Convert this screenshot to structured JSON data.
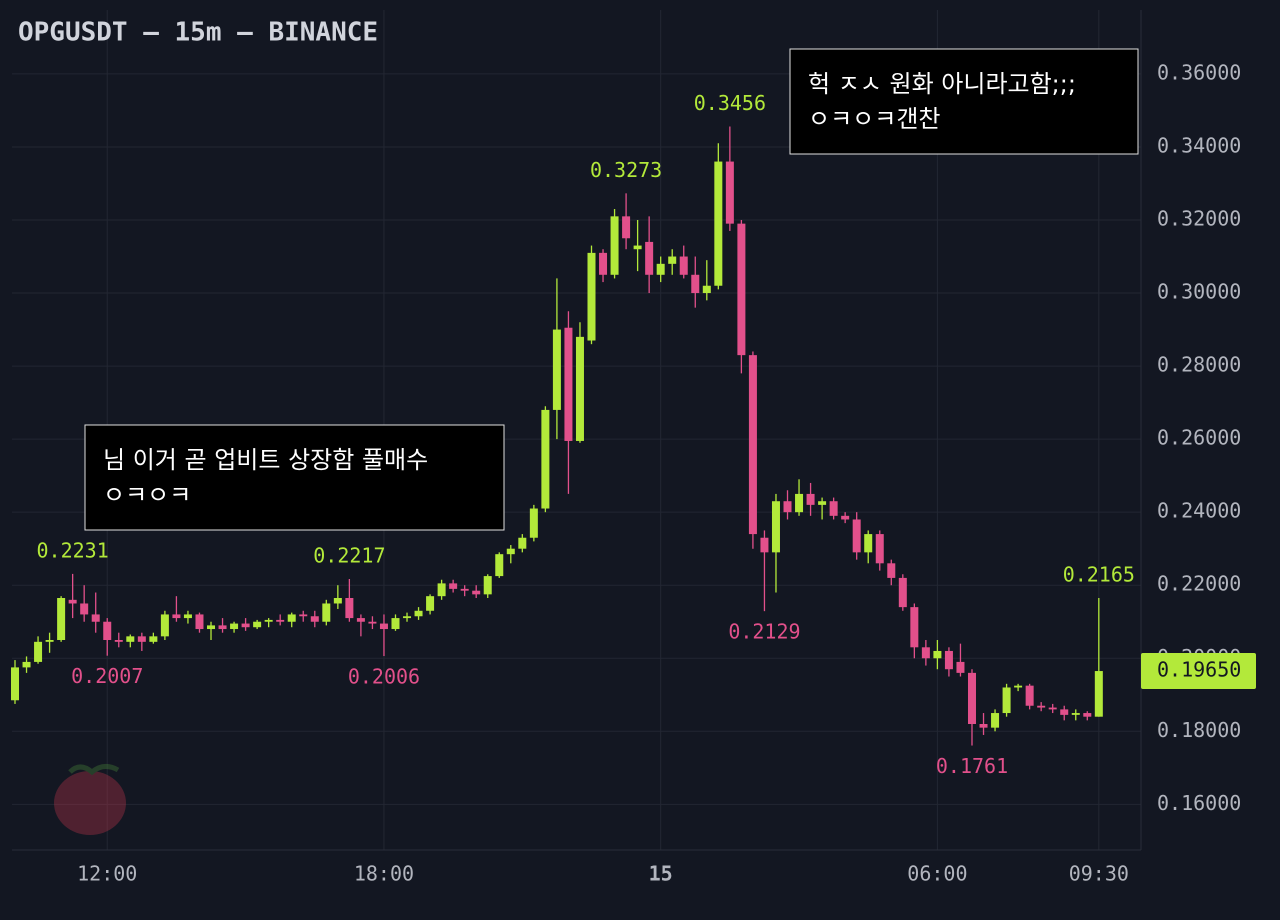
{
  "chart_data": {
    "type": "candlestick",
    "title": "OPGUSDT — 15m — BINANCE",
    "categories": [
      null,
      null,
      null,
      null,
      null,
      null,
      null,
      null,
      "12:00",
      null,
      null,
      null,
      null,
      null,
      null,
      null,
      null,
      null,
      null,
      null,
      null,
      null,
      null,
      null,
      null,
      null,
      null,
      null,
      null,
      null,
      null,
      null,
      "18:00",
      null,
      null,
      null,
      null,
      null,
      null,
      null,
      null,
      null,
      null,
      null,
      null,
      null,
      null,
      null,
      null,
      null,
      null,
      null,
      null,
      null,
      null,
      null,
      "15",
      null,
      null,
      null,
      null,
      null,
      null,
      null,
      null,
      null,
      null,
      null,
      null,
      null,
      null,
      null,
      null,
      null,
      null,
      null,
      null,
      null,
      null,
      null,
      "06:00",
      null,
      null,
      null,
      null,
      null,
      null,
      null,
      null,
      null,
      null,
      null,
      null,
      null,
      "09:30"
    ],
    "open": [
      0.1885,
      0.1975,
      0.199,
      0.2045,
      0.205,
      0.216,
      0.215,
      0.212,
      0.21,
      0.205,
      0.2045,
      0.206,
      0.2045,
      0.206,
      0.212,
      0.211,
      0.212,
      0.208,
      0.209,
      0.208,
      0.2095,
      0.2085,
      0.21,
      0.2105,
      0.21,
      0.212,
      0.2115,
      0.21,
      0.215,
      0.2165,
      0.211,
      0.21,
      0.2095,
      0.208,
      0.211,
      0.2115,
      0.213,
      0.217,
      0.2205,
      0.219,
      0.2185,
      0.2175,
      0.2225,
      0.2285,
      0.23,
      0.233,
      0.241,
      0.268,
      0.2905,
      0.2595,
      0.287,
      0.311,
      0.305,
      0.321,
      0.312,
      0.314,
      0.305,
      0.308,
      0.31,
      0.305,
      0.3,
      0.302,
      0.336,
      0.319,
      0.283,
      0.233,
      0.229,
      0.243,
      0.24,
      0.245,
      0.242,
      0.243,
      0.239,
      0.238,
      0.229,
      0.234,
      0.226,
      0.222,
      0.214,
      0.203,
      0.2,
      0.202,
      0.199,
      0.196,
      0.182,
      0.181,
      0.185,
      0.192,
      0.1925,
      0.187,
      0.1865,
      0.186,
      0.1845,
      0.185,
      0.184
    ],
    "high": [
      0.1995,
      0.2005,
      0.206,
      0.207,
      0.217,
      0.2231,
      0.22,
      0.218,
      0.211,
      0.207,
      0.2065,
      0.207,
      0.207,
      0.213,
      0.217,
      0.213,
      0.2125,
      0.21,
      0.211,
      0.21,
      0.211,
      0.2105,
      0.211,
      0.212,
      0.2125,
      0.213,
      0.213,
      0.216,
      0.22,
      0.2217,
      0.212,
      0.2115,
      0.212,
      0.212,
      0.2125,
      0.214,
      0.2175,
      0.2215,
      0.2215,
      0.22,
      0.22,
      0.223,
      0.229,
      0.231,
      0.234,
      0.242,
      0.269,
      0.304,
      0.295,
      0.292,
      0.313,
      0.312,
      0.323,
      0.3273,
      0.32,
      0.321,
      0.31,
      0.312,
      0.313,
      0.31,
      0.309,
      0.341,
      0.3456,
      0.32,
      0.284,
      0.235,
      0.245,
      0.246,
      0.249,
      0.248,
      0.244,
      0.244,
      0.24,
      0.24,
      0.235,
      0.235,
      0.227,
      0.223,
      0.215,
      0.205,
      0.205,
      0.203,
      0.204,
      0.197,
      0.185,
      0.186,
      0.193,
      0.193,
      0.193,
      0.188,
      0.1875,
      0.187,
      0.186,
      0.1855,
      0.2165
    ],
    "low": [
      0.1875,
      0.196,
      0.1985,
      0.2015,
      0.2045,
      0.211,
      0.21,
      0.207,
      0.2007,
      0.203,
      0.203,
      0.202,
      0.204,
      0.205,
      0.21,
      0.2095,
      0.207,
      0.205,
      0.207,
      0.207,
      0.2075,
      0.208,
      0.2085,
      0.209,
      0.2085,
      0.21,
      0.2085,
      0.209,
      0.2135,
      0.21,
      0.206,
      0.208,
      0.2006,
      0.2075,
      0.21,
      0.2105,
      0.212,
      0.216,
      0.218,
      0.217,
      0.2165,
      0.2165,
      0.222,
      0.226,
      0.229,
      0.232,
      0.24,
      0.26,
      0.245,
      0.259,
      0.286,
      0.303,
      0.304,
      0.312,
      0.306,
      0.3,
      0.303,
      0.305,
      0.304,
      0.296,
      0.298,
      0.301,
      0.317,
      0.278,
      0.23,
      0.2129,
      0.218,
      0.238,
      0.239,
      0.239,
      0.238,
      0.238,
      0.237,
      0.227,
      0.226,
      0.224,
      0.22,
      0.213,
      0.2,
      0.198,
      0.197,
      0.195,
      0.195,
      0.1761,
      0.179,
      0.18,
      0.184,
      0.191,
      0.186,
      0.1855,
      0.185,
      0.183,
      0.183,
      0.183,
      0.184
    ],
    "close": [
      0.1975,
      0.199,
      0.2045,
      0.205,
      0.2165,
      0.215,
      0.212,
      0.21,
      0.205,
      0.2045,
      0.206,
      0.2045,
      0.206,
      0.212,
      0.211,
      0.212,
      0.208,
      0.209,
      0.208,
      0.2095,
      0.2085,
      0.21,
      0.2105,
      0.21,
      0.212,
      0.2115,
      0.21,
      0.215,
      0.2165,
      0.211,
      0.21,
      0.2095,
      0.208,
      0.211,
      0.2115,
      0.213,
      0.217,
      0.2205,
      0.219,
      0.2185,
      0.2175,
      0.2225,
      0.2285,
      0.23,
      0.233,
      0.241,
      0.268,
      0.29,
      0.2595,
      0.288,
      0.311,
      0.305,
      0.321,
      0.315,
      0.313,
      0.305,
      0.308,
      0.31,
      0.305,
      0.3,
      0.302,
      0.336,
      0.319,
      0.283,
      0.234,
      0.229,
      0.243,
      0.24,
      0.245,
      0.242,
      0.243,
      0.239,
      0.238,
      0.229,
      0.234,
      0.226,
      0.222,
      0.214,
      0.203,
      0.2,
      0.202,
      0.197,
      0.196,
      0.182,
      0.181,
      0.185,
      0.192,
      0.1925,
      0.187,
      0.1865,
      0.186,
      0.1845,
      0.185,
      0.184,
      0.1965
    ],
    "high_labels": [
      null,
      null,
      null,
      null,
      null,
      "0.2231",
      null,
      null,
      null,
      null,
      null,
      null,
      null,
      null,
      null,
      null,
      null,
      null,
      null,
      null,
      null,
      null,
      null,
      null,
      null,
      null,
      null,
      null,
      null,
      "0.2217",
      null,
      null,
      null,
      null,
      null,
      null,
      null,
      null,
      null,
      null,
      null,
      null,
      null,
      null,
      null,
      null,
      null,
      null,
      null,
      null,
      null,
      null,
      null,
      "0.3273",
      null,
      null,
      null,
      null,
      null,
      null,
      null,
      null,
      "0.3456",
      null,
      null,
      null,
      null,
      null,
      null,
      null,
      null,
      null,
      null,
      null,
      null,
      null,
      null,
      null,
      null,
      null,
      null,
      null,
      null,
      null,
      null,
      null,
      null,
      null,
      null,
      null,
      null,
      null,
      null,
      null,
      "0.2165"
    ],
    "low_labels": [
      null,
      null,
      null,
      null,
      null,
      null,
      null,
      null,
      "0.2007",
      null,
      null,
      null,
      null,
      null,
      null,
      null,
      null,
      null,
      null,
      null,
      null,
      null,
      null,
      null,
      null,
      null,
      null,
      null,
      null,
      null,
      null,
      null,
      "0.2006",
      null,
      null,
      null,
      null,
      null,
      null,
      null,
      null,
      null,
      null,
      null,
      null,
      null,
      null,
      null,
      null,
      null,
      null,
      null,
      null,
      null,
      null,
      null,
      null,
      null,
      null,
      null,
      null,
      null,
      null,
      null,
      null,
      "0.2129",
      null,
      null,
      null,
      null,
      null,
      null,
      null,
      null,
      null,
      null,
      null,
      null,
      null,
      null,
      null,
      null,
      null,
      "0.1761",
      null,
      null,
      null,
      null,
      null,
      null,
      null,
      null,
      null,
      null,
      null
    ],
    "up_color": "#b3e93a",
    "down_color": "#e2508b",
    "last_price_label": "0.19650",
    "ylim": [
      0.1475,
      0.3775
    ],
    "yticks": [
      {
        "value": 0.16,
        "label": "0.16000"
      },
      {
        "value": 0.18,
        "label": "0.18000"
      },
      {
        "value": 0.2,
        "label": "0.20000"
      },
      {
        "value": 0.22,
        "label": "0.22000"
      },
      {
        "value": 0.24,
        "label": "0.24000"
      },
      {
        "value": 0.26,
        "label": "0.26000"
      },
      {
        "value": 0.28,
        "label": "0.28000"
      },
      {
        "value": 0.3,
        "label": "0.30000"
      },
      {
        "value": 0.32,
        "label": "0.32000"
      },
      {
        "value": 0.34,
        "label": "0.34000"
      },
      {
        "value": 0.36,
        "label": "0.36000"
      }
    ],
    "grid": true,
    "comments": [
      {
        "lines": [
          "헉 ㅈㅅ 원화 아니라고함;;;",
          "ㅇㅋㅇㅋ갠찬"
        ]
      },
      {
        "lines": [
          "님 이거 곧 업비트 상장함 풀매수",
          "ㅇㅋㅇㅋ"
        ]
      }
    ]
  }
}
